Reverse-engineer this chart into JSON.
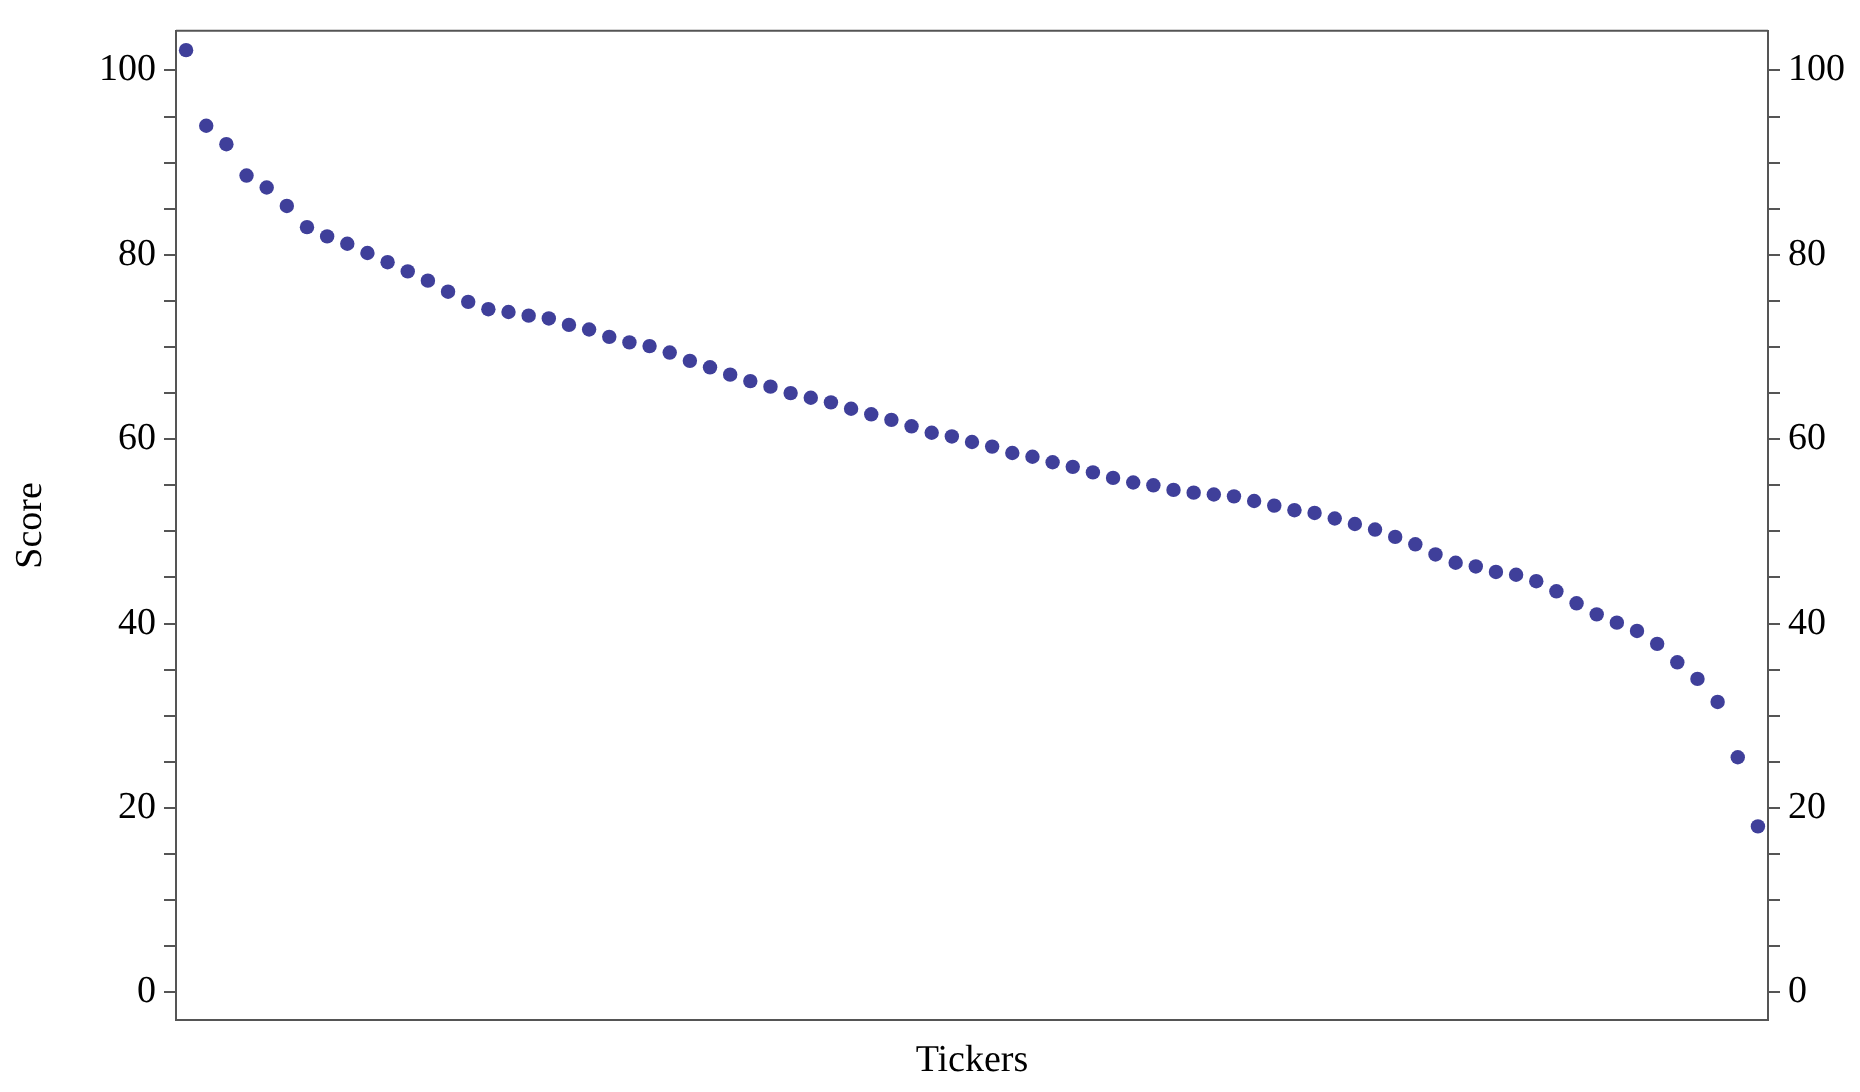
{
  "chart_data": {
    "type": "scatter",
    "xlabel": "Tickers",
    "ylabel": "Score",
    "categories": [
      null,
      null,
      null,
      null,
      null,
      null,
      null,
      null,
      null,
      null,
      null,
      null,
      null,
      null,
      null,
      null,
      null,
      null,
      null,
      null,
      null,
      null,
      null,
      null,
      null,
      null,
      null,
      null,
      null,
      null,
      null,
      null,
      null,
      null,
      null,
      null,
      null,
      null,
      null,
      null,
      null,
      null,
      null,
      null,
      null,
      null,
      null,
      null,
      null,
      null,
      null,
      null,
      null,
      null,
      null,
      null,
      null,
      null,
      null,
      null,
      null,
      null,
      null,
      null,
      null,
      null,
      null,
      null,
      null,
      null,
      null,
      null,
      null,
      null,
      null,
      null,
      null,
      null,
      null
    ],
    "series": [
      {
        "color": "#3f3f9a",
        "values": [
          102.2,
          94,
          92,
          88.6,
          87.3,
          85.3,
          83,
          82,
          81.2,
          80.2,
          79.2,
          78.2,
          77.2,
          76,
          74.9,
          74.1,
          73.8,
          73.4,
          73.1,
          72.4,
          71.9,
          71.1,
          70.5,
          70.1,
          69.4,
          68.5,
          67.8,
          67,
          66.3,
          65.7,
          65,
          64.5,
          64,
          63.3,
          62.7,
          62.1,
          61.4,
          60.7,
          60.3,
          59.7,
          59.2,
          58.5,
          58.1,
          57.5,
          57,
          56.4,
          55.8,
          55.3,
          55,
          54.5,
          54.2,
          54,
          53.8,
          53.3,
          52.8,
          52.3,
          52,
          51.4,
          50.8,
          50.2,
          49.4,
          48.6,
          47.5,
          46.6,
          46.2,
          45.6,
          45.3,
          44.6,
          43.5,
          42.2,
          41,
          40.1,
          39.2,
          37.8,
          35.8,
          34,
          31.5,
          25.5,
          18
        ]
      }
    ],
    "ylim": [
      -3,
      104.3
    ],
    "yticks": [
      0,
      {
        "value": 5,
        "label": null
      },
      {
        "value": 10,
        "label": null
      },
      {
        "value": 15,
        "label": null
      },
      20,
      {
        "value": 25,
        "label": null
      },
      {
        "value": 30,
        "label": null
      },
      {
        "value": 35,
        "label": null
      },
      40,
      {
        "value": 45,
        "label": null
      },
      {
        "value": 50,
        "label": null
      },
      {
        "value": 55,
        "label": null
      },
      60,
      {
        "value": 65,
        "label": null
      },
      {
        "value": 70,
        "label": null
      },
      {
        "value": 75,
        "label": null
      },
      80,
      {
        "value": 85,
        "label": null
      },
      {
        "value": 90,
        "label": null
      },
      {
        "value": 95,
        "label": null
      },
      100
    ],
    "y2lim": [
      -3,
      104.3
    ],
    "y2ticks": [
      0,
      {
        "value": 5,
        "label": null
      },
      {
        "value": 10,
        "label": null
      },
      {
        "value": 15,
        "label": null
      },
      20,
      {
        "value": 25,
        "label": null
      },
      {
        "value": 30,
        "label": null
      },
      {
        "value": 35,
        "label": null
      },
      40,
      {
        "value": 45,
        "label": null
      },
      {
        "value": 50,
        "label": null
      },
      {
        "value": 55,
        "label": null
      },
      60,
      {
        "value": 65,
        "label": null
      },
      {
        "value": 70,
        "label": null
      },
      {
        "value": 75,
        "label": null
      },
      80,
      {
        "value": 85,
        "label": null
      },
      {
        "value": 90,
        "label": null
      },
      {
        "value": 95,
        "label": null
      },
      100
    ],
    "tick_labels": "y",
    "grid": false,
    "legend": false,
    "marker": "circle"
  }
}
